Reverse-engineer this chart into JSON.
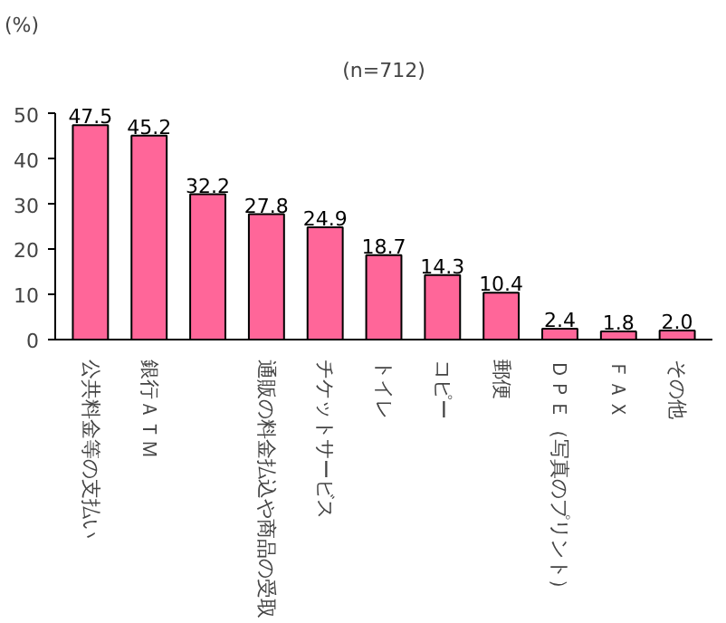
{
  "chart_data": {
    "type": "bar",
    "ylabel": "(%)",
    "annotations": [
      "(n=712)"
    ],
    "categories": [
      "公共料金等の支払い",
      "銀行ＡＴＭ",
      null,
      "通販の料金払込や商品の受取",
      "チケットサービス",
      "トイレ",
      "コピー",
      "郵便",
      "ＤＰＥ（写真のプリント）",
      "ＦＡＸ",
      "その他"
    ],
    "values": [
      47.5,
      45.2,
      32.2,
      27.8,
      24.9,
      18.7,
      14.3,
      10.4,
      2.4,
      1.8,
      2.0
    ],
    "color": "#ff6699",
    "ylim": [
      0,
      50
    ],
    "yticks": [
      0,
      10,
      20,
      30,
      40,
      50
    ],
    "value_labels": [
      "47.5",
      "45.2",
      "32.2",
      "27.8",
      "24.9",
      "18.7",
      "14.3",
      "10.4",
      "2.4",
      "1.8",
      "2.0"
    ],
    "grid": false
  }
}
